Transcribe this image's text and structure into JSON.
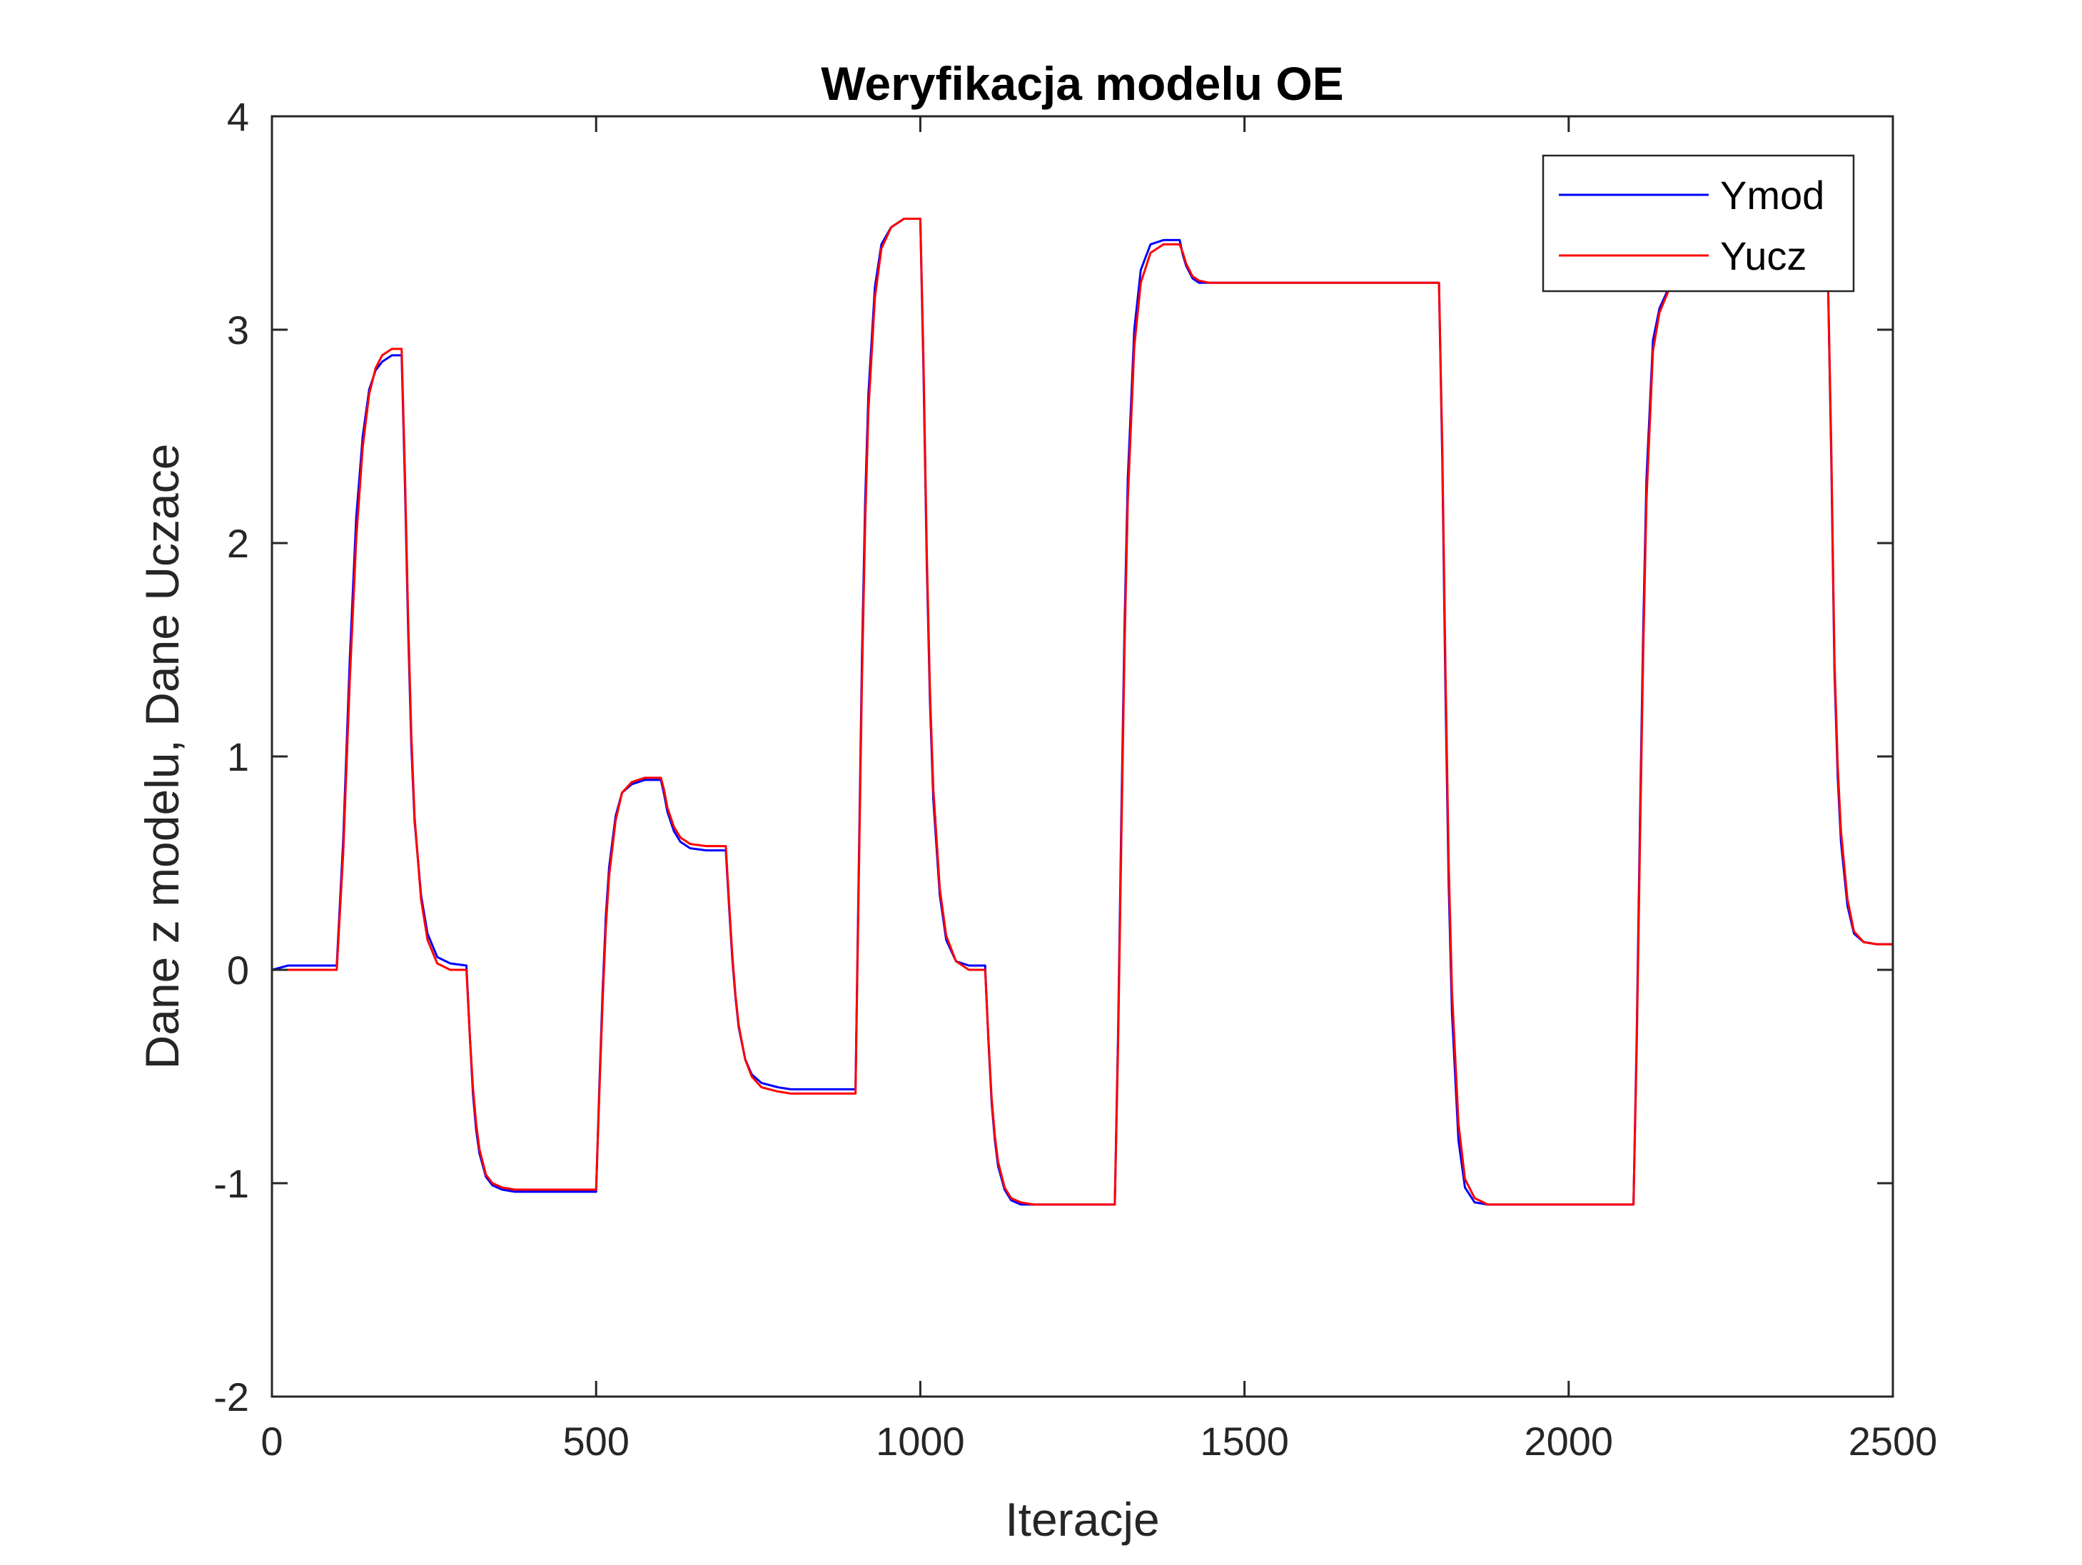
{
  "chart_data": {
    "type": "line",
    "title": "Weryfikacja modelu OE",
    "xlabel": "Iteracje",
    "ylabel": "Dane z modelu, Dane Uczace",
    "xlim": [
      0,
      2500
    ],
    "ylim": [
      -2,
      4
    ],
    "xticks": [
      0,
      500,
      1000,
      1500,
      2000,
      2500
    ],
    "xtick_labels": [
      "0",
      "500",
      "1000",
      "1500",
      "2000",
      "2500"
    ],
    "yticks": [
      -2,
      -1,
      0,
      1,
      2,
      3,
      4
    ],
    "ytick_labels": [
      "-2",
      "-1",
      "0",
      "1",
      "2",
      "3",
      "4"
    ],
    "grid": false,
    "legend_position": "top-right",
    "series": [
      {
        "name": "Ymod",
        "color": "#0000ff",
        "x": [
          0,
          25,
          100,
          110,
          120,
          130,
          140,
          150,
          160,
          170,
          185,
          200,
          205,
          210,
          215,
          220,
          230,
          240,
          255,
          275,
          300,
          305,
          310,
          315,
          320,
          330,
          340,
          355,
          375,
          500,
          505,
          510,
          515,
          520,
          530,
          540,
          555,
          575,
          600,
          605,
          610,
          620,
          630,
          645,
          670,
          700,
          705,
          710,
          715,
          720,
          730,
          740,
          755,
          780,
          800,
          900,
          905,
          910,
          915,
          920,
          930,
          940,
          955,
          975,
          1000,
          1005,
          1010,
          1015,
          1020,
          1030,
          1040,
          1055,
          1075,
          1100,
          1105,
          1110,
          1115,
          1120,
          1130,
          1140,
          1155,
          1175,
          1300,
          1305,
          1310,
          1315,
          1320,
          1330,
          1340,
          1355,
          1375,
          1400,
          1405,
          1410,
          1420,
          1430,
          1445,
          1470,
          1800,
          1805,
          1810,
          1815,
          1820,
          1830,
          1840,
          1855,
          1875,
          2100,
          2105,
          2110,
          2115,
          2120,
          2130,
          2140,
          2155,
          2175,
          2400,
          2405,
          2410,
          2415,
          2420,
          2430,
          2440,
          2455,
          2475,
          2500
        ],
        "y": [
          0.0,
          0.02,
          0.02,
          0.61,
          1.45,
          2.12,
          2.5,
          2.72,
          2.81,
          2.85,
          2.88,
          2.88,
          2.3,
          1.6,
          1.05,
          0.7,
          0.35,
          0.17,
          0.06,
          0.03,
          0.02,
          -0.3,
          -0.58,
          -0.75,
          -0.86,
          -0.97,
          -1.01,
          -1.03,
          -1.04,
          -1.04,
          -0.55,
          -0.1,
          0.25,
          0.48,
          0.72,
          0.83,
          0.87,
          0.89,
          0.89,
          0.82,
          0.74,
          0.65,
          0.6,
          0.57,
          0.56,
          0.56,
          0.3,
          0.05,
          -0.13,
          -0.27,
          -0.42,
          -0.49,
          -0.53,
          -0.55,
          -0.56,
          -0.56,
          0.45,
          1.45,
          2.2,
          2.7,
          3.2,
          3.4,
          3.48,
          3.52,
          3.52,
          2.8,
          1.9,
          1.25,
          0.8,
          0.35,
          0.14,
          0.04,
          0.02,
          0.02,
          -0.33,
          -0.62,
          -0.8,
          -0.92,
          -1.03,
          -1.08,
          -1.1,
          -1.1,
          -1.1,
          -0.3,
          0.7,
          1.6,
          2.3,
          3.0,
          3.28,
          3.4,
          3.42,
          3.42,
          3.35,
          3.3,
          3.24,
          3.22,
          3.22,
          3.22,
          3.22,
          2.4,
          1.3,
          0.4,
          -0.2,
          -0.8,
          -1.02,
          -1.09,
          -1.1,
          -1.1,
          -0.3,
          0.7,
          1.6,
          2.3,
          2.95,
          3.1,
          3.2,
          3.22,
          3.22,
          2.4,
          1.4,
          0.9,
          0.6,
          0.3,
          0.17,
          0.13,
          0.12,
          0.12
        ]
      },
      {
        "name": "Yucz",
        "color": "#ff0000",
        "x": [
          0,
          25,
          100,
          110,
          120,
          130,
          140,
          150,
          160,
          170,
          185,
          200,
          205,
          210,
          215,
          220,
          230,
          240,
          255,
          275,
          300,
          305,
          310,
          315,
          320,
          330,
          340,
          355,
          375,
          500,
          505,
          510,
          515,
          520,
          530,
          540,
          555,
          575,
          600,
          605,
          610,
          620,
          630,
          645,
          670,
          700,
          705,
          710,
          715,
          720,
          730,
          740,
          755,
          780,
          800,
          900,
          905,
          910,
          915,
          920,
          930,
          940,
          955,
          975,
          1000,
          1005,
          1010,
          1015,
          1020,
          1030,
          1040,
          1055,
          1075,
          1100,
          1105,
          1110,
          1115,
          1120,
          1130,
          1140,
          1155,
          1175,
          1300,
          1305,
          1310,
          1315,
          1320,
          1330,
          1340,
          1355,
          1375,
          1400,
          1405,
          1410,
          1420,
          1430,
          1445,
          1470,
          1800,
          1805,
          1810,
          1815,
          1820,
          1830,
          1840,
          1855,
          1875,
          2100,
          2105,
          2110,
          2115,
          2120,
          2130,
          2140,
          2155,
          2175,
          2400,
          2405,
          2410,
          2415,
          2420,
          2430,
          2440,
          2455,
          2475,
          2500
        ],
        "y": [
          0.0,
          0.0,
          0.0,
          0.55,
          1.35,
          2.02,
          2.45,
          2.7,
          2.82,
          2.88,
          2.91,
          2.91,
          2.35,
          1.65,
          1.1,
          0.72,
          0.33,
          0.14,
          0.03,
          0.0,
          0.0,
          -0.3,
          -0.55,
          -0.72,
          -0.84,
          -0.96,
          -1.0,
          -1.02,
          -1.03,
          -1.03,
          -0.58,
          -0.15,
          0.2,
          0.44,
          0.7,
          0.83,
          0.88,
          0.9,
          0.9,
          0.84,
          0.76,
          0.67,
          0.62,
          0.59,
          0.58,
          0.58,
          0.32,
          0.07,
          -0.12,
          -0.26,
          -0.42,
          -0.5,
          -0.55,
          -0.57,
          -0.58,
          -0.58,
          0.4,
          1.35,
          2.1,
          2.62,
          3.15,
          3.38,
          3.48,
          3.52,
          3.52,
          2.85,
          1.95,
          1.3,
          0.85,
          0.38,
          0.16,
          0.04,
          0.0,
          0.0,
          -0.32,
          -0.6,
          -0.78,
          -0.9,
          -1.02,
          -1.07,
          -1.09,
          -1.1,
          -1.1,
          -0.35,
          0.6,
          1.5,
          2.2,
          2.92,
          3.22,
          3.36,
          3.4,
          3.4,
          3.36,
          3.31,
          3.25,
          3.23,
          3.22,
          3.22,
          3.22,
          2.45,
          1.4,
          0.5,
          -0.1,
          -0.72,
          -0.98,
          -1.07,
          -1.1,
          -1.1,
          -0.35,
          0.6,
          1.5,
          2.2,
          2.9,
          3.08,
          3.19,
          3.22,
          3.22,
          2.45,
          1.45,
          0.95,
          0.65,
          0.33,
          0.18,
          0.13,
          0.12,
          0.12
        ]
      }
    ]
  }
}
